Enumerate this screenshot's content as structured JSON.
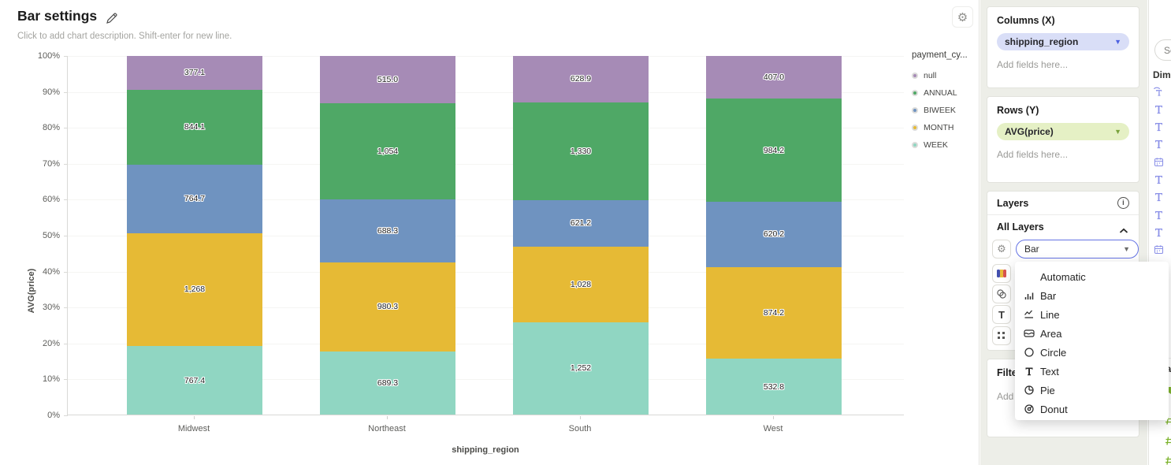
{
  "header": {
    "title": "Bar settings",
    "description_placeholder": "Click to add chart description. Shift-enter for new line.",
    "gear_glyph": "⚙"
  },
  "chart_data": {
    "type": "bar",
    "stacked": true,
    "normalized_percent": true,
    "categories": [
      "Midwest",
      "Northeast",
      "South",
      "West"
    ],
    "series": [
      {
        "name": "null",
        "color": "#a68bb6",
        "values": [
          377.1,
          515.0,
          628.9,
          407.0
        ],
        "labels": [
          "377.1",
          "515.0",
          "628.9",
          "407.0"
        ]
      },
      {
        "name": "ANNUAL",
        "color": "#4fa866",
        "values": [
          844.1,
          1054,
          1330,
          984.2
        ],
        "labels": [
          "844.1",
          "1,054",
          "1,330",
          "984.2"
        ]
      },
      {
        "name": "BIWEEK",
        "color": "#6f93c0",
        "values": [
          764.7,
          688.3,
          621.2,
          620.2
        ],
        "labels": [
          "764.7",
          "688.3",
          "621.2",
          "620.2"
        ]
      },
      {
        "name": "MONTH",
        "color": "#e6ba35",
        "values": [
          1268,
          980.3,
          1028,
          874.2
        ],
        "labels": [
          "1,268",
          "980.3",
          "1,028",
          "874.2"
        ]
      },
      {
        "name": "WEEK",
        "color": "#90d6c2",
        "values": [
          767.4,
          689.3,
          1252,
          532.8
        ],
        "labels": [
          "767.4",
          "689.3",
          "1,252",
          "532.8"
        ]
      }
    ],
    "y_ticks": [
      "100%",
      "90%",
      "80%",
      "70%",
      "60%",
      "50%",
      "40%",
      "30%",
      "20%",
      "10%",
      "0%"
    ],
    "ylim": [
      "0%",
      "100%"
    ],
    "grid": true,
    "legend_title": "payment_cy...",
    "legend_position": "right",
    "ylabel": "AVG(price)",
    "xlabel": "shipping_region"
  },
  "sidebar": {
    "columns_card": {
      "title": "Columns (X)",
      "pill": "shipping_region",
      "placeholder": "Add fields here..."
    },
    "rows_card": {
      "title": "Rows (Y)",
      "pill": "AVG(price)",
      "placeholder": "Add fields here..."
    },
    "layers_card": {
      "title": "Layers",
      "all_layers_label": "All Layers",
      "layer_type_value": "Bar"
    },
    "filter_card": {
      "title": "Filters",
      "placeholder": "Add filters..."
    },
    "type_menu": {
      "items": [
        {
          "label": "Automatic",
          "icon": null
        },
        {
          "label": "Bar",
          "icon": "bar-chart-icon"
        },
        {
          "label": "Line",
          "icon": "line-chart-icon"
        },
        {
          "label": "Area",
          "icon": "area-chart-icon"
        },
        {
          "label": "Circle",
          "icon": "circle-chart-icon"
        },
        {
          "label": "Text",
          "icon": "text-chart-icon"
        },
        {
          "label": "Pie",
          "icon": "pie-chart-icon"
        },
        {
          "label": "Donut",
          "icon": "donut-chart-icon"
        }
      ]
    }
  },
  "fields_panel": {
    "search_placeholder": "Search",
    "dimensions_label": "Dimensions",
    "measures_label": "Measures",
    "dimension_field_icons": [
      "text-formula-icon",
      "text-icon",
      "text-icon",
      "text-icon",
      "calendar-icon",
      "text-icon",
      "text-icon",
      "text-icon",
      "text-icon",
      "calendar-icon",
      "text-icon",
      "text-icon",
      "list-icon",
      "text-icon",
      "text-icon",
      "text-icon"
    ],
    "measure_field_icons": [
      "funnel-icon",
      "number-icon",
      "number-icon",
      "number-icon"
    ]
  },
  "colors": {
    "accent_blue": "#5b6ee1",
    "pill_columns_bg": "#d9def7",
    "pill_columns_caret": "#4d61e1",
    "pill_rows_bg": "#e5f0c5",
    "pill_rows_caret": "#79a23c",
    "dimension_icon": "#8c92e8",
    "measure_icon": "#7db32c",
    "sidebar_bg": "#edeee8"
  }
}
